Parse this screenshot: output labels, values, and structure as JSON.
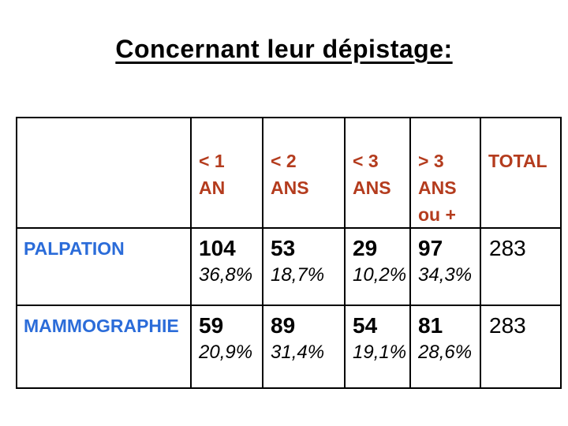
{
  "slide": {
    "title": "Concernant leur dépistage:"
  },
  "colors": {
    "header_text": "#B43C1E",
    "row_label_text": "#2B6CD9",
    "value_text": "#000000",
    "border": "#000000",
    "background": "#FFFFFF"
  },
  "table": {
    "header": {
      "col0": "",
      "col1": "< 1\nAN",
      "col2": "< 2\nANS",
      "col3": "< 3\nANS",
      "col4": "> 3\nANS\nou +",
      "col5": "TOTAL"
    },
    "rows": [
      {
        "label": "PALPATION",
        "cells": [
          {
            "count": "104",
            "pct": "36,8%"
          },
          {
            "count": "53",
            "pct": "18,7%"
          },
          {
            "count": "29",
            "pct": "10,2%"
          },
          {
            "count": "97",
            "pct": "34,3%"
          }
        ],
        "total": "283"
      },
      {
        "label": "MAMMOGRAPHIE",
        "cells": [
          {
            "count": "59",
            "pct": "20,9%"
          },
          {
            "count": "89",
            "pct": "31,4%"
          },
          {
            "count": "54",
            "pct": "19,1%"
          },
          {
            "count": "81",
            "pct": "28,6%"
          }
        ],
        "total": "283"
      }
    ]
  }
}
